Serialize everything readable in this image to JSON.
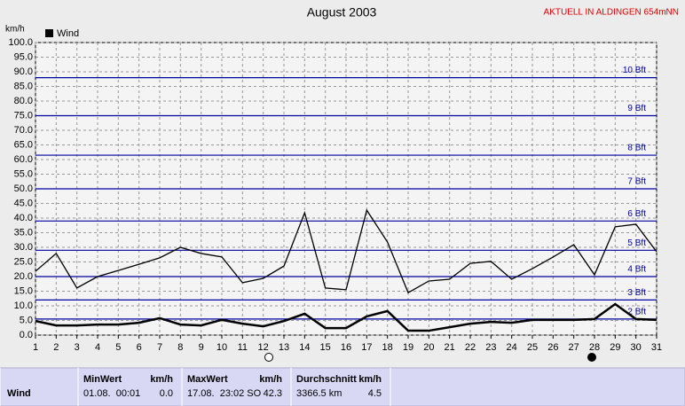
{
  "chart_data": {
    "type": "line",
    "title": "August 2003",
    "subtitle": "AKTUELL IN ALDINGEN 654mNN",
    "y_label": "km/h",
    "legend": "top-left",
    "x": [
      1,
      2,
      3,
      4,
      5,
      6,
      7,
      8,
      9,
      10,
      11,
      12,
      13,
      14,
      15,
      16,
      17,
      18,
      19,
      20,
      21,
      22,
      23,
      24,
      25,
      26,
      27,
      28,
      29,
      30,
      31
    ],
    "xlim": [
      1,
      31
    ],
    "xticks": [
      1,
      2,
      3,
      4,
      5,
      6,
      7,
      8,
      9,
      10,
      11,
      12,
      13,
      14,
      15,
      16,
      17,
      18,
      19,
      20,
      21,
      22,
      23,
      24,
      25,
      26,
      27,
      28,
      29,
      30,
      31
    ],
    "ylim": [
      0,
      100
    ],
    "yticks": [
      {
        "value": 0,
        "label": "0.0"
      },
      {
        "value": 5,
        "label": "5.0"
      },
      {
        "value": 10,
        "label": "10.0"
      },
      {
        "value": 15,
        "label": "15.0"
      },
      {
        "value": 20,
        "label": "20.0"
      },
      {
        "value": 25,
        "label": "25.0"
      },
      {
        "value": 30,
        "label": "30.0"
      },
      {
        "value": 35,
        "label": "35.0"
      },
      {
        "value": 40,
        "label": "40.0"
      },
      {
        "value": 45,
        "label": "45.0"
      },
      {
        "value": 50,
        "label": "50.0"
      },
      {
        "value": 55,
        "label": "55.0"
      },
      {
        "value": 60,
        "label": "60.0"
      },
      {
        "value": 65,
        "label": "65.0"
      },
      {
        "value": 70,
        "label": "70.0"
      },
      {
        "value": 75,
        "label": "75.0"
      },
      {
        "value": 80,
        "label": "80.0"
      },
      {
        "value": 85,
        "label": "85.0"
      },
      {
        "value": 90,
        "label": "90.0"
      },
      {
        "value": 95,
        "label": "95.0"
      },
      {
        "value": 100,
        "label": "100.0"
      }
    ],
    "grid": true,
    "reference_lines": [
      {
        "value": 5.5,
        "label": "2 Bft"
      },
      {
        "value": 12,
        "label": "3 Bft"
      },
      {
        "value": 20,
        "label": "4 Bft"
      },
      {
        "value": 29,
        "label": "5 Bft"
      },
      {
        "value": 39,
        "label": "6 Bft"
      },
      {
        "value": 50,
        "label": "7 Bft"
      },
      {
        "value": 61.5,
        "label": "8 Bft"
      },
      {
        "value": 75,
        "label": "9 Bft"
      },
      {
        "value": 88,
        "label": "10 Bft"
      }
    ],
    "reference_color": "#0000a0",
    "series": [
      {
        "name": "Wind",
        "color": "#000000",
        "values": [
          4.8,
          3.3,
          3.3,
          3.6,
          3.6,
          4.2,
          5.8,
          3.6,
          3.3,
          5.2,
          3.9,
          3,
          4.8,
          7.3,
          2.4,
          2.4,
          6.4,
          8.2,
          1.5,
          1.5,
          2.7,
          3.9,
          4.5,
          4.2,
          5.2,
          5.2,
          5.2,
          5.5,
          10.6,
          5.5,
          5.2
        ]
      },
      {
        "color": "#000000",
        "values": [
          21.8,
          27.9,
          16.1,
          20,
          22.1,
          24.2,
          26.4,
          30,
          27.9,
          26.7,
          17.9,
          19.4,
          23.6,
          41.8,
          16.1,
          15.5,
          42.7,
          31.8,
          14.5,
          18.5,
          19.1,
          24.5,
          25.2,
          19.1,
          22.7,
          26.7,
          30.9,
          20.6,
          37,
          37.9,
          28.5
        ]
      }
    ]
  },
  "stats": {
    "columns": [
      {
        "title": "MinWert",
        "unit": "km/h"
      },
      {
        "title": "MaxWert",
        "unit": "km/h"
      },
      {
        "title": "Durchschnitt",
        "unit": "km/h"
      }
    ],
    "rows": [
      {
        "label": "Wind",
        "cells": [
          [
            "01.08.  00:01",
            "0.0"
          ],
          [
            "17.08.  23:02 SO",
            "42.3"
          ],
          [
            "3366.5 km",
            "4.5"
          ]
        ]
      }
    ]
  }
}
